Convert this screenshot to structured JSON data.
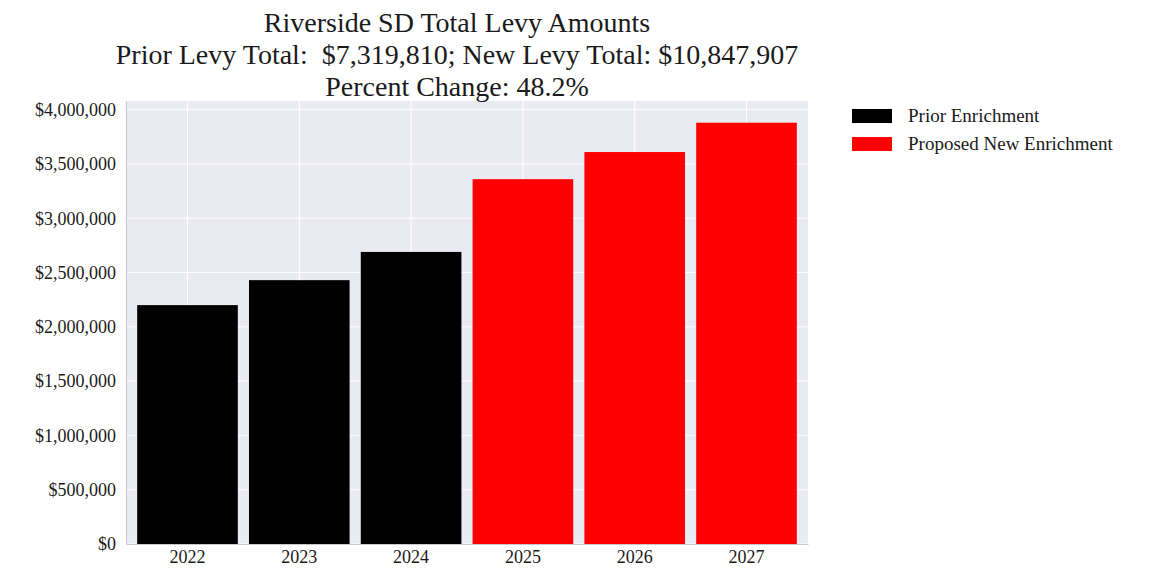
{
  "chart_data": {
    "type": "bar",
    "title": "Riverside SD Total Levy Amounts\nPrior Levy Total:  $7,319,810; New Levy Total: $10,847,907\nPercent Change: 48.2%",
    "categories": [
      "2022",
      "2023",
      "2024",
      "2025",
      "2026",
      "2027"
    ],
    "series": [
      {
        "name": "Prior Enrichment",
        "color": "#000000",
        "values": [
          2200000,
          2430000,
          2690000,
          null,
          null,
          null
        ]
      },
      {
        "name": "Proposed New Enrichment",
        "color": "#ff0000",
        "values": [
          null,
          null,
          null,
          3360000,
          3610000,
          3880000
        ]
      }
    ],
    "ylim": [
      0,
      4080000
    ],
    "yticks": [
      {
        "value": 0,
        "label": "$0"
      },
      {
        "value": 500000,
        "label": "$500,000"
      },
      {
        "value": 1000000,
        "label": "$1,000,000"
      },
      {
        "value": 1500000,
        "label": "$1,500,000"
      },
      {
        "value": 2000000,
        "label": "$2,000,000"
      },
      {
        "value": 2500000,
        "label": "$2,500,000"
      },
      {
        "value": 3000000,
        "label": "$3,000,000"
      },
      {
        "value": 3500000,
        "label": "$3,500,000"
      },
      {
        "value": 4000000,
        "label": "$4,000,000"
      }
    ],
    "grid": true,
    "legend": "upper right"
  }
}
